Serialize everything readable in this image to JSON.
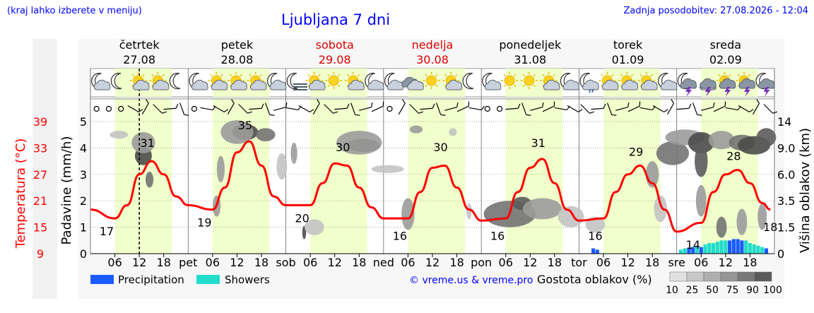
{
  "header": {
    "left_note": "(kraj lahko izberete v meniju)",
    "title": "Ljubljana 7 dni",
    "updated": "Zadnja posodobitev: 27.08.2026 - 12:04"
  },
  "colors": {
    "link_blue": "#0000ff",
    "temperature_red": "#ff0000",
    "daylight": "#f0ffcc",
    "precipitation": "#1a5cff",
    "showers": "#22ddcc"
  },
  "days": [
    {
      "name": "četrtek",
      "date": "27.08",
      "weekend": false,
      "abbr": ""
    },
    {
      "name": "petek",
      "date": "28.08",
      "weekend": false,
      "abbr": "pet"
    },
    {
      "name": "sobota",
      "date": "29.08",
      "weekend": true,
      "abbr": "sob"
    },
    {
      "name": "nedelja",
      "date": "30.08",
      "weekend": true,
      "abbr": "ned"
    },
    {
      "name": "ponedeljek",
      "date": "31.08",
      "weekend": false,
      "abbr": "pon"
    },
    {
      "name": "torek",
      "date": "01.09",
      "weekend": false,
      "abbr": "tor"
    },
    {
      "name": "sreda",
      "date": "02.09",
      "weekend": false,
      "abbr": "sre"
    }
  ],
  "weather_icons": [
    [
      "moon-cloud-icon",
      "moon-icon",
      "sun-cloud-icon",
      "sun-cloud-icon",
      "moon-icon"
    ],
    [
      "moon-cloud-icon",
      "sun-cloud-icon",
      "sun-cloud-icon",
      "sun-cloud-icon",
      "moon-cloud-icon"
    ],
    [
      "moon-fog-icon",
      "sun-cloud-icon",
      "sun-icon",
      "sun-cloud-icon",
      "moon-cloud-icon"
    ],
    [
      "moon-cloud-icon",
      "cloud-icon",
      "sun-icon",
      "sun-cloud-icon",
      "moon-icon"
    ],
    [
      "moon-cloud-icon",
      "sun-icon",
      "sun-icon",
      "sun-cloud-icon",
      "moon-cloud-icon"
    ],
    [
      "moon-cloud-rain-icon",
      "sun-cloud-icon",
      "sun-cloud-icon",
      "sun-cloud-icon",
      "moon-cloud-icon"
    ],
    [
      "moon-thunder-icon",
      "thunder-cloud-icon",
      "sun-thunder-icon",
      "sun-thunder-icon",
      "moon-thunder-icon"
    ]
  ],
  "legend": {
    "precipitation": "Precipitation",
    "showers": "Showers",
    "credit": "© vreme.us & vreme.pro",
    "cloud_density_title": "Gostota oblakov (%)",
    "cloud_density_ticks": [
      "10",
      "25",
      "50",
      "75",
      "90",
      "100"
    ]
  },
  "chart_data": {
    "type": "line",
    "temperature": {
      "axis_label": "Temperatura (°C)",
      "ticks": [
        "9",
        "15",
        "21",
        "27",
        "33",
        "39"
      ],
      "ylim": [
        9,
        39
      ],
      "x_hours": [
        0,
        6,
        9,
        12,
        15,
        18,
        21,
        24,
        30,
        33,
        36,
        39,
        42,
        45,
        48,
        54,
        57,
        60,
        63,
        66,
        69,
        72,
        78,
        81,
        84,
        87,
        90,
        93,
        96,
        102,
        105,
        108,
        111,
        114,
        117,
        120,
        126,
        129,
        132,
        135,
        138,
        141,
        144,
        150,
        153,
        156,
        159,
        162,
        165,
        167
      ],
      "values": [
        19,
        17,
        20,
        27,
        30,
        27,
        22,
        20,
        19,
        24,
        32,
        34.5,
        29,
        22,
        20,
        20,
        25,
        29.5,
        29,
        24,
        19.5,
        17,
        17,
        23,
        28.5,
        29,
        24,
        19,
        16.5,
        17,
        23,
        28.5,
        30.5,
        25,
        19,
        16.5,
        17,
        23,
        27,
        29,
        25,
        19,
        14,
        16,
        23,
        27,
        28,
        25,
        20.5,
        19
      ],
      "labeled": [
        {
          "x": 4,
          "value": "17"
        },
        {
          "x": 14,
          "value": "31"
        },
        {
          "x": 28,
          "value": "19"
        },
        {
          "x": 38,
          "value": "35"
        },
        {
          "x": 52,
          "value": "20"
        },
        {
          "x": 62,
          "value": "30"
        },
        {
          "x": 76,
          "value": "16"
        },
        {
          "x": 86,
          "value": "30"
        },
        {
          "x": 100,
          "value": "16"
        },
        {
          "x": 110,
          "value": "31"
        },
        {
          "x": 124,
          "value": "16"
        },
        {
          "x": 134,
          "value": "29"
        },
        {
          "x": 148,
          "value": "14"
        },
        {
          "x": 158,
          "value": "28"
        },
        {
          "x": 167,
          "value": "18"
        }
      ]
    },
    "precipitation": {
      "axis_label": "Padavine (mm/h)",
      "ticks": [
        "0",
        "1",
        "2",
        "3",
        "4",
        "5"
      ],
      "ylim": [
        0,
        5
      ],
      "bars": [
        {
          "x": 123.5,
          "value": 0.2,
          "kind": "precipitation"
        },
        {
          "x": 124.5,
          "value": 0.15,
          "kind": "precipitation"
        },
        {
          "x": 145,
          "value": 0.15,
          "kind": "showers"
        },
        {
          "x": 146,
          "value": 0.2,
          "kind": "showers"
        },
        {
          "x": 147,
          "value": 0.2,
          "kind": "precipitation"
        },
        {
          "x": 148,
          "value": 0.25,
          "kind": "precipitation"
        },
        {
          "x": 149,
          "value": 0.3,
          "kind": "showers"
        },
        {
          "x": 150,
          "value": 0.25,
          "kind": "precipitation"
        },
        {
          "x": 151,
          "value": 0.35,
          "kind": "showers"
        },
        {
          "x": 152,
          "value": 0.4,
          "kind": "showers"
        },
        {
          "x": 153,
          "value": 0.4,
          "kind": "showers"
        },
        {
          "x": 154,
          "value": 0.45,
          "kind": "showers"
        },
        {
          "x": 155,
          "value": 0.5,
          "kind": "showers"
        },
        {
          "x": 156,
          "value": 0.5,
          "kind": "showers"
        },
        {
          "x": 157,
          "value": 0.5,
          "kind": "precipitation"
        },
        {
          "x": 158,
          "value": 0.55,
          "kind": "precipitation"
        },
        {
          "x": 159,
          "value": 0.55,
          "kind": "precipitation"
        },
        {
          "x": 160,
          "value": 0.5,
          "kind": "precipitation"
        },
        {
          "x": 161,
          "value": 0.5,
          "kind": "showers"
        },
        {
          "x": 162,
          "value": 0.4,
          "kind": "showers"
        },
        {
          "x": 163,
          "value": 0.35,
          "kind": "showers"
        },
        {
          "x": 164,
          "value": 0.3,
          "kind": "showers"
        },
        {
          "x": 165,
          "value": 0.25,
          "kind": "showers"
        },
        {
          "x": 166,
          "value": 0.2,
          "kind": "precipitation"
        }
      ]
    },
    "cloud_height": {
      "axis_label": "Višina oblakov (km)",
      "ticks": [
        "0",
        "1.5",
        "3.5",
        "6.0",
        "9.0",
        "14"
      ]
    },
    "x_axis": {
      "hours_shown": [
        "06",
        "12",
        "18"
      ],
      "range_hours": [
        0,
        168
      ]
    },
    "daylight_hours": [
      6,
      20
    ],
    "current_time_hour": 12,
    "wind_arrows_per_day": 8,
    "cloud_blobs": [
      {
        "x": 13,
        "y": 3.7,
        "rx": 1.3,
        "ry": 0.35,
        "density": 100
      },
      {
        "x": 13,
        "y": 4.2,
        "rx": 1.8,
        "ry": 0.4,
        "density": 50
      },
      {
        "x": 14.5,
        "y": 2.8,
        "rx": 0.6,
        "ry": 0.3,
        "density": 75
      },
      {
        "x": 7,
        "y": 4.5,
        "rx": 1.4,
        "ry": 0.15,
        "density": 25
      },
      {
        "x": 32,
        "y": 3.2,
        "rx": 0.6,
        "ry": 0.5,
        "density": 50
      },
      {
        "x": 31,
        "y": 1.8,
        "rx": 0.6,
        "ry": 0.4,
        "density": 50
      },
      {
        "x": 38,
        "y": 4.6,
        "rx": 2,
        "ry": 0.3,
        "density": 100
      },
      {
        "x": 36,
        "y": 4.6,
        "rx": 2.5,
        "ry": 0.45,
        "density": 50
      },
      {
        "x": 43,
        "y": 4.5,
        "rx": 1.5,
        "ry": 0.25,
        "density": 75
      },
      {
        "x": 47,
        "y": 3.3,
        "rx": 0.8,
        "ry": 0.5,
        "density": 25
      },
      {
        "x": 50,
        "y": 3.8,
        "rx": 0.5,
        "ry": 0.4,
        "density": 50
      },
      {
        "x": 52.5,
        "y": 0.8,
        "rx": 0.3,
        "ry": 0.25,
        "density": 100
      },
      {
        "x": 55,
        "y": 1.0,
        "rx": 1.5,
        "ry": 0.3,
        "density": 25
      },
      {
        "x": 67,
        "y": 4.1,
        "rx": 2.5,
        "ry": 0.25,
        "density": 100
      },
      {
        "x": 66,
        "y": 4.2,
        "rx": 3.5,
        "ry": 0.45,
        "density": 50
      },
      {
        "x": 73,
        "y": 3.2,
        "rx": 2.5,
        "ry": 0.15,
        "density": 25
      },
      {
        "x": 80,
        "y": 4.7,
        "rx": 1,
        "ry": 0.15,
        "density": 50
      },
      {
        "x": 78,
        "y": 1.5,
        "rx": 1,
        "ry": 0.6,
        "density": 50
      },
      {
        "x": 89,
        "y": 4.6,
        "rx": 0.6,
        "ry": 0.15,
        "density": 25
      },
      {
        "x": 93,
        "y": 1.6,
        "rx": 0.4,
        "ry": 0.3,
        "density": 25
      },
      {
        "x": 103,
        "y": 1.5,
        "rx": 4,
        "ry": 0.5,
        "density": 75
      },
      {
        "x": 106,
        "y": 1.9,
        "rx": 1.5,
        "ry": 0.25,
        "density": 90
      },
      {
        "x": 111,
        "y": 1.7,
        "rx": 3,
        "ry": 0.4,
        "density": 50
      },
      {
        "x": 118,
        "y": 1.4,
        "rx": 2,
        "ry": 0.4,
        "density": 25
      },
      {
        "x": 124,
        "y": 1.1,
        "rx": 1.5,
        "ry": 0.3,
        "density": 25
      },
      {
        "x": 143,
        "y": 3.8,
        "rx": 2.5,
        "ry": 0.45,
        "density": 75
      },
      {
        "x": 146,
        "y": 4.4,
        "rx": 3,
        "ry": 0.3,
        "density": 50
      },
      {
        "x": 150,
        "y": 4.2,
        "rx": 2,
        "ry": 0.4,
        "density": 100
      },
      {
        "x": 150,
        "y": 3.5,
        "rx": 1,
        "ry": 0.6,
        "density": 90
      },
      {
        "x": 155,
        "y": 4.3,
        "rx": 2,
        "ry": 0.35,
        "density": 50
      },
      {
        "x": 160,
        "y": 4.2,
        "rx": 2,
        "ry": 0.3,
        "density": 75
      },
      {
        "x": 163,
        "y": 4.1,
        "rx": 2.5,
        "ry": 0.35,
        "density": 100
      },
      {
        "x": 166,
        "y": 4.4,
        "rx": 1.5,
        "ry": 0.35,
        "density": 90
      },
      {
        "x": 138,
        "y": 3.0,
        "rx": 1,
        "ry": 0.5,
        "density": 50
      },
      {
        "x": 140,
        "y": 1.7,
        "rx": 1,
        "ry": 0.5,
        "density": 25
      },
      {
        "x": 150,
        "y": 2.0,
        "rx": 0.8,
        "ry": 0.6,
        "density": 50
      },
      {
        "x": 155,
        "y": 1.0,
        "rx": 0.8,
        "ry": 0.4,
        "density": 75
      },
      {
        "x": 160,
        "y": 1.2,
        "rx": 0.8,
        "ry": 0.5,
        "density": 50
      },
      {
        "x": 165,
        "y": 1.4,
        "rx": 0.7,
        "ry": 0.5,
        "density": 50
      }
    ]
  }
}
